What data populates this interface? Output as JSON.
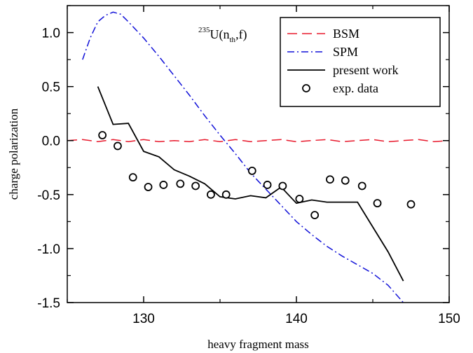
{
  "chart_data": {
    "type": "line",
    "title": "",
    "xlabel": "heavy fragment mass",
    "ylabel": "charge polarization",
    "xlim": [
      125,
      150
    ],
    "ylim": [
      -1.5,
      1.25
    ],
    "xticks": [
      130,
      140,
      150
    ],
    "yticks": [
      -1.5,
      -1.0,
      -0.5,
      0.0,
      0.5,
      1.0
    ],
    "ytick_labels": [
      "-1.5",
      "-1.0",
      "-0.5",
      "0.0",
      "0.5",
      "1.0"
    ],
    "xtick_labels": [
      "130",
      "140",
      "150"
    ],
    "grid": false,
    "legend_position": "top-right",
    "annotation": {
      "pre": "235",
      "base": "U(n",
      "sub": "th",
      "post": ",f)"
    },
    "series": [
      {
        "name": "BSM",
        "style": "dashed",
        "color": "#e8192c",
        "x": [
          125,
          126,
          127,
          128,
          129,
          130,
          131,
          132,
          133,
          134,
          135,
          136,
          137,
          138,
          139,
          140,
          141,
          142,
          143,
          144,
          145,
          146,
          147,
          148,
          149,
          150
        ],
        "y": [
          0.0,
          0.01,
          -0.01,
          0.01,
          -0.01,
          0.01,
          -0.01,
          0.0,
          -0.01,
          0.01,
          -0.01,
          0.01,
          -0.01,
          0.0,
          0.01,
          -0.01,
          0.0,
          0.01,
          -0.01,
          0.0,
          0.01,
          -0.01,
          0.0,
          0.01,
          -0.01,
          0.0
        ]
      },
      {
        "name": "SPM",
        "style": "dashdot",
        "color": "#1010d8",
        "x": [
          126,
          126.5,
          127,
          127.5,
          128,
          128.5,
          129,
          130,
          131,
          132,
          133,
          134,
          135,
          136,
          137,
          138,
          139,
          140,
          141,
          142,
          143,
          144,
          145,
          146,
          147
        ],
        "y": [
          0.75,
          0.95,
          1.1,
          1.16,
          1.19,
          1.17,
          1.1,
          0.95,
          0.78,
          0.6,
          0.42,
          0.23,
          0.05,
          -0.12,
          -0.3,
          -0.45,
          -0.6,
          -0.75,
          -0.87,
          -0.98,
          -1.07,
          -1.15,
          -1.23,
          -1.34,
          -1.5
        ]
      },
      {
        "name": "present work",
        "style": "solid",
        "color": "#000000",
        "x": [
          127,
          128,
          129,
          130,
          131,
          132,
          133,
          134,
          135,
          136,
          137,
          138,
          139,
          140,
          141,
          142,
          143,
          144,
          145,
          146,
          147
        ],
        "y": [
          0.5,
          0.15,
          0.16,
          -0.1,
          -0.15,
          -0.27,
          -0.33,
          -0.4,
          -0.52,
          -0.54,
          -0.51,
          -0.53,
          -0.43,
          -0.58,
          -0.55,
          -0.57,
          -0.57,
          -0.57,
          -0.8,
          -1.03,
          -1.3
        ]
      },
      {
        "name": "exp. data",
        "style": "markers",
        "color": "#000000",
        "x": [
          127.3,
          128.3,
          129.3,
          130.3,
          131.3,
          132.4,
          133.4,
          134.4,
          135.4,
          137.1,
          138.1,
          139.1,
          140.2,
          141.2,
          142.2,
          143.2,
          144.3,
          145.3,
          147.5
        ],
        "y": [
          0.05,
          -0.05,
          -0.34,
          -0.43,
          -0.41,
          -0.4,
          -0.42,
          -0.5,
          -0.5,
          -0.28,
          -0.41,
          -0.42,
          -0.54,
          -0.69,
          -0.36,
          -0.37,
          -0.42,
          -0.58,
          -0.59
        ]
      }
    ]
  }
}
